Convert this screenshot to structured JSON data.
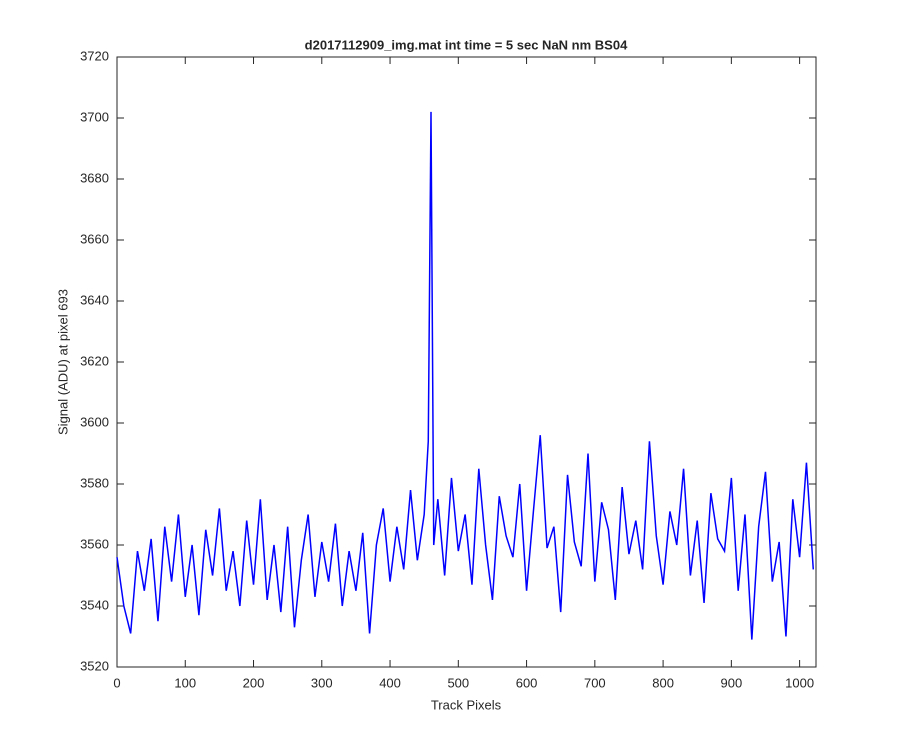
{
  "chart_data": {
    "type": "line",
    "title": "d2017112909_img.mat int time = 5 sec  NaN nm BS04",
    "xlabel": "Track Pixels",
    "ylabel": "Signal (ADU) at pixel 693",
    "xlim": [
      0,
      1024
    ],
    "ylim": [
      3520,
      3720
    ],
    "xticks": [
      0,
      100,
      200,
      300,
      400,
      500,
      600,
      700,
      800,
      900,
      1000
    ],
    "yticks": [
      3520,
      3540,
      3560,
      3580,
      3600,
      3620,
      3640,
      3660,
      3680,
      3700,
      3720
    ],
    "x": [
      0,
      10,
      20,
      30,
      40,
      50,
      60,
      70,
      80,
      90,
      100,
      110,
      120,
      130,
      140,
      150,
      160,
      170,
      180,
      190,
      200,
      210,
      220,
      230,
      240,
      250,
      260,
      270,
      280,
      290,
      300,
      310,
      320,
      330,
      340,
      350,
      360,
      370,
      380,
      390,
      400,
      410,
      420,
      430,
      440,
      450,
      456,
      460,
      464,
      470,
      480,
      490,
      500,
      510,
      520,
      530,
      540,
      550,
      560,
      570,
      580,
      590,
      600,
      610,
      620,
      630,
      640,
      650,
      660,
      670,
      680,
      690,
      700,
      710,
      720,
      730,
      740,
      750,
      760,
      770,
      780,
      790,
      800,
      810,
      820,
      830,
      840,
      850,
      860,
      870,
      880,
      890,
      900,
      910,
      920,
      930,
      940,
      950,
      960,
      970,
      980,
      990,
      1000,
      1010,
      1020
    ],
    "series": [
      {
        "name": "pixel 693",
        "color": "#0000ff",
        "values": [
          3556,
          3540,
          3531,
          3558,
          3545,
          3562,
          3535,
          3566,
          3548,
          3570,
          3543,
          3560,
          3537,
          3565,
          3550,
          3572,
          3545,
          3558,
          3540,
          3568,
          3547,
          3575,
          3542,
          3560,
          3538,
          3566,
          3533,
          3555,
          3570,
          3543,
          3561,
          3548,
          3567,
          3540,
          3558,
          3545,
          3564,
          3531,
          3560,
          3572,
          3548,
          3566,
          3552,
          3578,
          3555,
          3570,
          3594,
          3702,
          3560,
          3575,
          3550,
          3582,
          3558,
          3570,
          3547,
          3585,
          3560,
          3542,
          3576,
          3563,
          3556,
          3580,
          3545,
          3571,
          3596,
          3559,
          3566,
          3538,
          3583,
          3561,
          3553,
          3590,
          3548,
          3574,
          3565,
          3542,
          3579,
          3557,
          3568,
          3552,
          3594,
          3563,
          3547,
          3571,
          3560,
          3585,
          3550,
          3568,
          3541,
          3577,
          3562,
          3558,
          3582,
          3545,
          3570,
          3529,
          3566,
          3584,
          3548,
          3561,
          3530,
          3575,
          3556,
          3587,
          3552
        ]
      }
    ]
  }
}
